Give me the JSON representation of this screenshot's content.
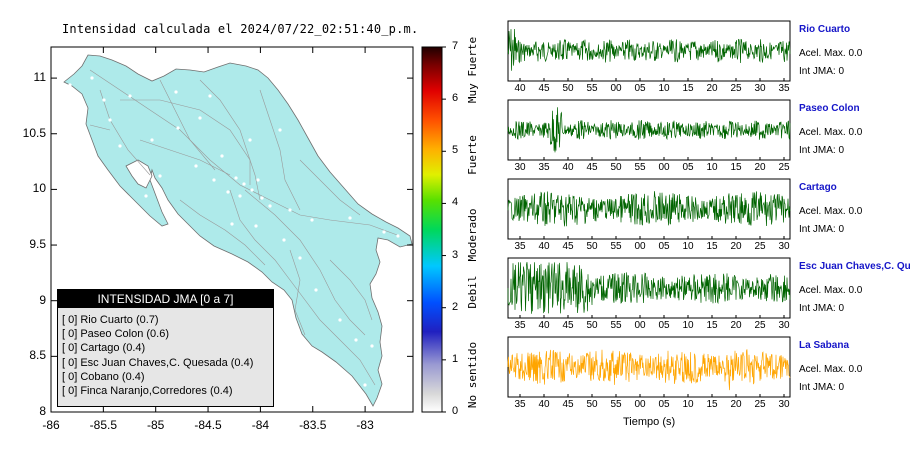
{
  "title": "Intensidad calculada el 2024/07/22_02:51:40_p.m.",
  "map": {
    "x_ticks": [
      "-86",
      "-85.5",
      "-85",
      "-84.5",
      "-84",
      "-83.5",
      "-83"
    ],
    "y_ticks": [
      "11",
      "10.5",
      "10",
      "9.5",
      "9",
      "8.5",
      "8"
    ],
    "land_color": "#aeeaea",
    "road_color": "#999999"
  },
  "legend": {
    "header": "INTENSIDAD JMA [0 a 7]",
    "items": [
      "[ 0] Rio Cuarto (0.7)",
      "[ 0] Paseo Colon (0.6)",
      "[ 0] Cartago (0.4)",
      "[ 0] Esc Juan Chaves,C. Quesada (0.4)",
      "[ 0] Cobano (0.4)",
      "[ 0] Finca Naranjo,Corredores (0.4)"
    ]
  },
  "colorbar": {
    "ticks": [
      "7",
      "6",
      "5",
      "4",
      "3",
      "2",
      "1",
      "0"
    ],
    "labels": [
      "Muy Fuerte",
      "Fuerte",
      "Moderado",
      "Debil",
      "No sentido"
    ]
  },
  "stations": [
    {
      "name": "Rio Cuarto",
      "acel": "Acel. Max. 0.0",
      "int": "Int JMA: 0",
      "color": "#006400",
      "ticks": [
        "40",
        "45",
        "50",
        "55",
        "00",
        "05",
        "10",
        "15",
        "20",
        "25",
        "30",
        "35"
      ]
    },
    {
      "name": "Paseo Colon",
      "acel": "Acel. Max. 0.0",
      "int": "Int JMA: 0",
      "color": "#006400",
      "ticks": [
        "30",
        "35",
        "40",
        "45",
        "50",
        "55",
        "00",
        "05",
        "10",
        "15",
        "20",
        "25"
      ]
    },
    {
      "name": "Cartago",
      "acel": "Acel. Max. 0.0",
      "int": "Int JMA: 0",
      "color": "#006400",
      "ticks": [
        "35",
        "40",
        "45",
        "50",
        "55",
        "00",
        "05",
        "10",
        "15",
        "20",
        "25",
        "30"
      ]
    },
    {
      "name": "Esc Juan Chaves,C. Qu",
      "acel": "Acel. Max. 0.0",
      "int": "Int JMA: 0",
      "color": "#006400",
      "ticks": [
        "35",
        "40",
        "45",
        "50",
        "55",
        "00",
        "05",
        "10",
        "15",
        "20",
        "25",
        "30"
      ]
    },
    {
      "name": "La Sabana",
      "acel": "Acel. Max. 0.0",
      "int": "Int JMA: 0",
      "color": "#ffa500",
      "ticks": [
        "35",
        "40",
        "45",
        "50",
        "55",
        "00",
        "05",
        "10",
        "15",
        "20",
        "25",
        "30"
      ]
    }
  ],
  "traces_xlabel": "Tiempo (s)"
}
